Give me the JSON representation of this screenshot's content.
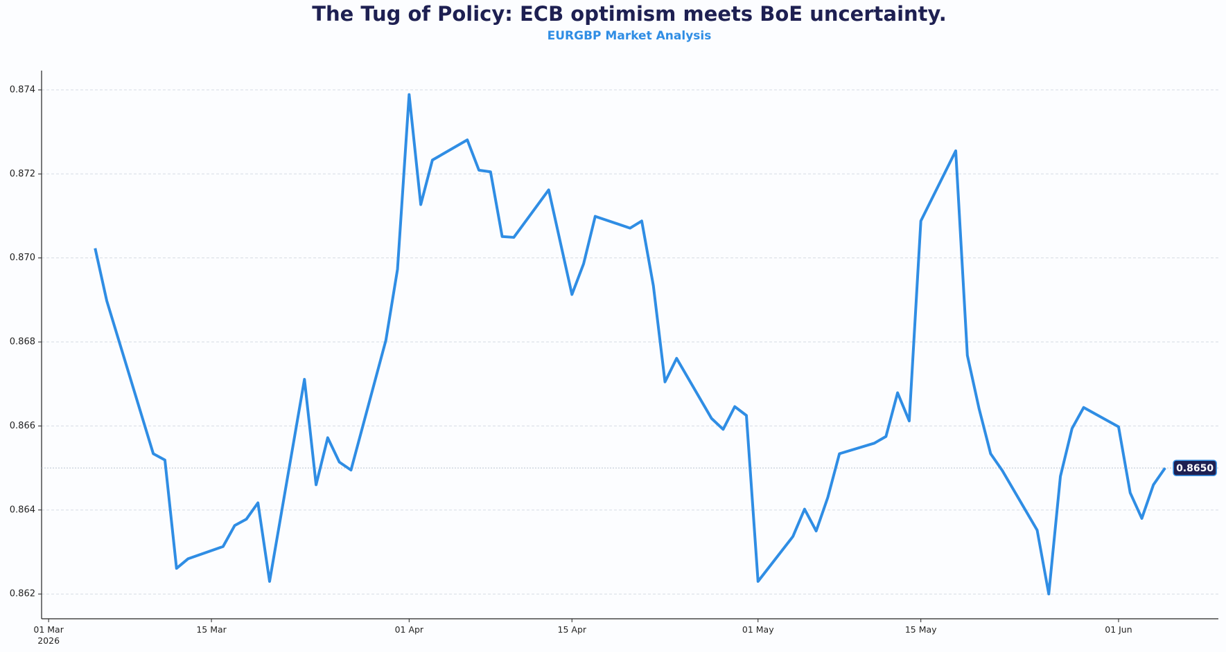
{
  "chart_data": {
    "type": "line",
    "title": "The Tug of Policy: ECB optimism meets BoE uncertainty.",
    "subtitle": "EURGBP Market Analysis",
    "color": "#2f8de4",
    "x": [
      "2026-03-05",
      "2026-03-06",
      "2026-03-10",
      "2026-03-11",
      "2026-03-12",
      "2026-03-13",
      "2026-03-16",
      "2026-03-17",
      "2026-03-18",
      "2026-03-19",
      "2026-03-20",
      "2026-03-23",
      "2026-03-24",
      "2026-03-25",
      "2026-03-26",
      "2026-03-27",
      "2026-03-30",
      "2026-03-31",
      "2026-04-01",
      "2026-04-02",
      "2026-04-03",
      "2026-04-06",
      "2026-04-07",
      "2026-04-08",
      "2026-04-09",
      "2026-04-10",
      "2026-04-13",
      "2026-04-15",
      "2026-04-16",
      "2026-04-17",
      "2026-04-20",
      "2026-04-21",
      "2026-04-22",
      "2026-04-23",
      "2026-04-24",
      "2026-04-27",
      "2026-04-28",
      "2026-04-29",
      "2026-04-30",
      "2026-05-01",
      "2026-05-04",
      "2026-05-05",
      "2026-05-06",
      "2026-05-07",
      "2026-05-08",
      "2026-05-11",
      "2026-05-12",
      "2026-05-13",
      "2026-05-14",
      "2026-05-15",
      "2026-05-18",
      "2026-05-19",
      "2026-05-20",
      "2026-05-21",
      "2026-05-22",
      "2026-05-25",
      "2026-05-26",
      "2026-05-27",
      "2026-05-28",
      "2026-05-29",
      "2026-06-01",
      "2026-06-02",
      "2026-06-03",
      "2026-06-04",
      "2026-06-05"
    ],
    "values": [
      0.87023,
      0.86898,
      0.86534,
      0.86519,
      0.86261,
      0.86284,
      0.86313,
      0.86363,
      0.86378,
      0.86417,
      0.8623,
      0.86711,
      0.8646,
      0.86572,
      0.86514,
      0.86495,
      0.86804,
      0.86973,
      0.87389,
      0.87127,
      0.87233,
      0.87281,
      0.87209,
      0.87205,
      0.87051,
      0.87049,
      0.87162,
      0.86913,
      0.86986,
      0.87099,
      0.87071,
      0.87088,
      0.86934,
      0.86705,
      0.86761,
      0.86618,
      0.86592,
      0.86646,
      0.86625,
      0.8623,
      0.86337,
      0.86402,
      0.8635,
      0.8643,
      0.86534,
      0.86559,
      0.86575,
      0.86679,
      0.86612,
      0.87088,
      0.87255,
      0.86768,
      0.86642,
      0.86534,
      0.86494,
      0.86352,
      0.862,
      0.8648,
      0.86594,
      0.86644,
      0.86598,
      0.86441,
      0.8638,
      0.8646,
      0.865
    ],
    "value_labels": [
      null,
      null,
      null,
      null,
      null,
      null,
      null,
      null,
      null,
      null,
      null,
      null,
      null,
      null,
      null,
      null,
      null,
      null,
      null,
      null,
      null,
      null,
      null,
      null,
      null,
      null,
      null,
      null,
      null,
      null,
      null,
      null,
      null,
      null,
      null,
      null,
      null,
      null,
      null,
      null,
      null,
      null,
      null,
      null,
      null,
      null,
      null,
      null,
      null,
      null,
      null,
      null,
      null,
      null,
      null,
      null,
      null,
      null,
      null,
      null,
      null,
      null,
      null,
      null,
      "0.8650"
    ],
    "xlim": [
      "2026-02-28T09:30",
      "2026-06-09T14:00"
    ],
    "xticks": [
      {
        "value": "2026-03-01",
        "label": "01 Mar\n2026"
      },
      {
        "value": "2026-03-15",
        "label": "15 Mar"
      },
      {
        "value": "2026-04-01",
        "label": "01 Apr"
      },
      {
        "value": "2026-04-15",
        "label": "15 Apr"
      },
      {
        "value": "2026-05-01",
        "label": "01 May"
      },
      {
        "value": "2026-05-15",
        "label": "15 May"
      },
      {
        "value": "2026-06-01",
        "label": "01 Jun"
      }
    ],
    "ylim": [
      0.86141,
      0.87446
    ],
    "yticks": [
      0.862,
      0.864,
      0.866,
      0.868,
      {
        "value": 0.87,
        "label": "0.870"
      },
      0.872,
      0.874
    ],
    "grid": true
  }
}
